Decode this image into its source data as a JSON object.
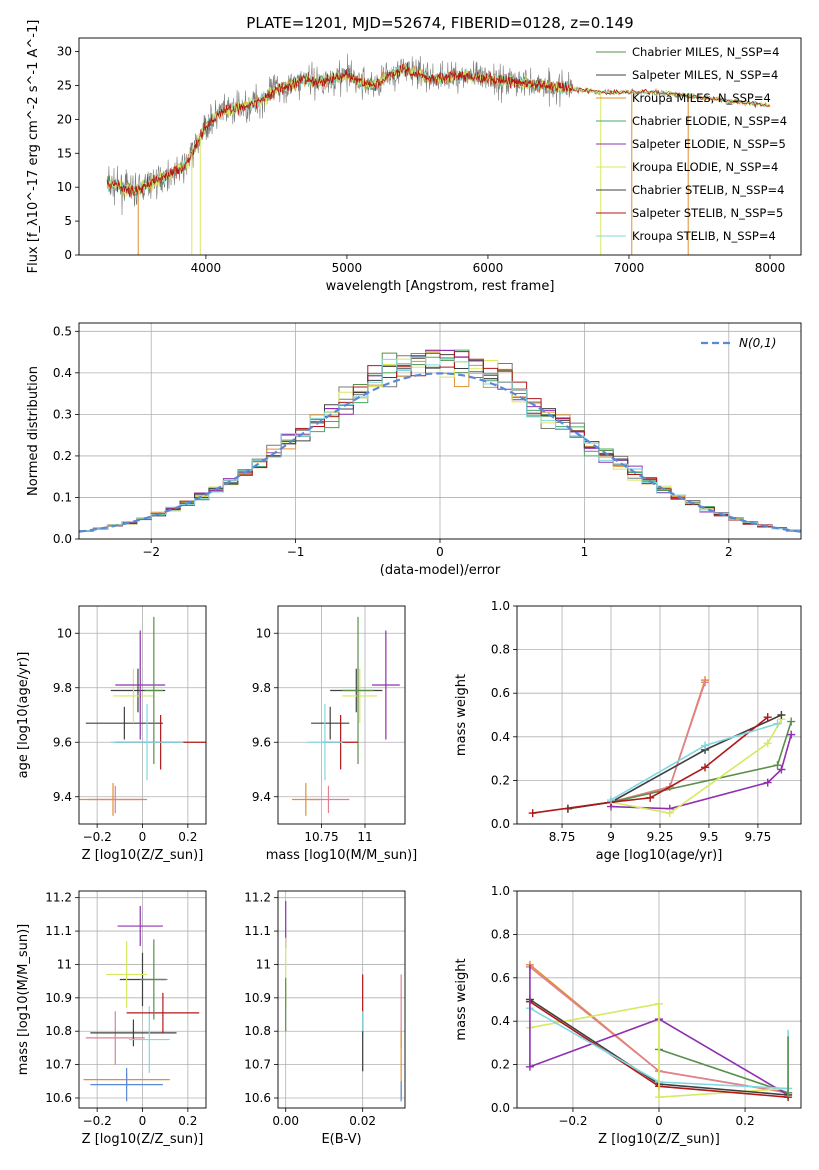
{
  "figure_title": "PLATE=1201, MJD=52674, FIBERID=0128, z=0.149",
  "colors": [
    "#5a8f4a",
    "#7a7a7a",
    "#e09030",
    "#4aa868",
    "#9030b0",
    "#d8e860",
    "#404040",
    "#b01818",
    "#80d8e0"
  ],
  "chart_data": [
    {
      "id": "spectrum",
      "type": "line",
      "xlabel": "wavelength [Angstrom, rest frame]",
      "ylabel": "Flux [f_λ10^-17 erg cm^-2 s^-1 A^-1]",
      "xlim": [
        3100,
        8220
      ],
      "ylim": [
        0,
        32
      ],
      "xticks": [
        4000,
        5000,
        6000,
        7000,
        8000
      ],
      "yticks": [
        0,
        5,
        10,
        15,
        20,
        25,
        30
      ],
      "grid": false,
      "legend_position": "top-right",
      "legend": [
        {
          "label": "Chabrier MILES, N_SSP=4",
          "color": "#5a8f4a"
        },
        {
          "label": "Salpeter MILES, N_SSP=4",
          "color": "#404040"
        },
        {
          "label": "Kroupa MILES, N_SSP=4",
          "color": "#e09030"
        },
        {
          "label": "Chabrier ELODIE, N_SSP=4",
          "color": "#4aa868"
        },
        {
          "label": "Salpeter ELODIE, N_SSP=5",
          "color": "#9030b0"
        },
        {
          "label": "Kroupa ELODIE, N_SSP=4",
          "color": "#d8e860"
        },
        {
          "label": "Chabrier STELIB, N_SSP=4",
          "color": "#404040"
        },
        {
          "label": "Salpeter STELIB, N_SSP=5",
          "color": "#b01818"
        },
        {
          "label": "Kroupa STELIB, N_SSP=4",
          "color": "#80d8e0"
        }
      ],
      "continuum": {
        "x": [
          3300,
          3500,
          3700,
          3850,
          3950,
          4000,
          4100,
          4200,
          4300,
          4400,
          4500,
          4600,
          4700,
          4800,
          4900,
          5000,
          5100,
          5200,
          5300,
          5400,
          5600,
          5800,
          6000,
          6200,
          6400,
          6600,
          6800,
          7000,
          7200,
          7400,
          7600,
          7800,
          8000
        ],
        "y": [
          10.5,
          9.5,
          11.5,
          13,
          17,
          19,
          21,
          21.5,
          22,
          23,
          24.5,
          25,
          26,
          25.5,
          26,
          26.5,
          25.5,
          25,
          26.5,
          27.5,
          26,
          26.5,
          26,
          25.5,
          25,
          24.5,
          24,
          24,
          24,
          23.5,
          23,
          22.5,
          22
        ]
      },
      "noise_range": [
        3300,
        6600
      ],
      "drops": [
        {
          "x": 3520,
          "color": "#e09030"
        },
        {
          "x": 3900,
          "color": "#d8e860"
        },
        {
          "x": 3960,
          "color": "#d8e860"
        },
        {
          "x": 6800,
          "color": "#d8e860"
        },
        {
          "x": 7020,
          "color": "#e09030"
        },
        {
          "x": 7420,
          "color": "#e09030"
        }
      ]
    },
    {
      "id": "residuals",
      "type": "histogram",
      "xlabel": "(data-model)/error",
      "ylabel": "Normed distribution",
      "xlim": [
        -2.5,
        2.5
      ],
      "ylim": [
        0,
        0.52
      ],
      "xticks": [
        -2,
        -1,
        0,
        1,
        2
      ],
      "yticks": [
        0.0,
        0.1,
        0.2,
        0.3,
        0.4,
        0.5
      ],
      "grid": true,
      "bin_width": 0.1,
      "legend_position": "top-right",
      "reference": {
        "label": "N(0,1)",
        "color": "#5a88d8",
        "style": "dashed"
      }
    },
    {
      "id": "age-vs-Z",
      "type": "errorbar",
      "xlabel": "Z [log10(Z/Z_sun)]",
      "ylabel": "age [log10(age/yr)]",
      "xlim": [
        -0.28,
        0.28
      ],
      "ylim": [
        9.3,
        10.1
      ],
      "xticks": [
        -0.2,
        0.0,
        0.2
      ],
      "yticks": [
        9.4,
        9.6,
        9.8,
        10.0
      ],
      "grid": true,
      "points": [
        {
          "x": -0.13,
          "y": 9.39,
          "xerr": 0.15,
          "yerr": 0.06,
          "color": "#e09030"
        },
        {
          "x": -0.12,
          "y": 9.39,
          "xerr": 0.12,
          "yerr": 0.05,
          "color": "#e08090"
        },
        {
          "x": -0.08,
          "y": 9.67,
          "xerr": 0.17,
          "yerr": 0.06,
          "color": "#404040"
        },
        {
          "x": -0.02,
          "y": 9.79,
          "xerr": 0.12,
          "yerr": 0.08,
          "color": "#404040"
        },
        {
          "x": -0.04,
          "y": 9.77,
          "xerr": 0.09,
          "yerr": 0.1,
          "color": "#d8e860"
        },
        {
          "x": -0.01,
          "y": 9.81,
          "xerr": 0.11,
          "yerr": 0.2,
          "color": "#9030b0"
        },
        {
          "x": 0.05,
          "y": 9.79,
          "xerr": 0.04,
          "yerr": 0.27,
          "color": "#5a8f4a"
        },
        {
          "x": 0.08,
          "y": 9.6,
          "xerr": 0.2,
          "yerr": 0.1,
          "color": "#b01818"
        },
        {
          "x": 0.02,
          "y": 9.6,
          "xerr": 0.16,
          "yerr": 0.14,
          "color": "#80d8e0"
        }
      ]
    },
    {
      "id": "age-vs-mass",
      "type": "errorbar",
      "xlabel": "mass [log10(M/M_sun)]",
      "ylabel": "",
      "xlim": [
        10.5,
        11.23
      ],
      "ylim": [
        9.3,
        10.1
      ],
      "xticks": [
        10.75,
        11.0
      ],
      "yticks": [
        9.4,
        9.6,
        9.8,
        10.0
      ],
      "grid": true,
      "points": [
        {
          "x": 10.66,
          "y": 9.39,
          "xerr": 0.08,
          "yerr": 0.06,
          "color": "#e09030"
        },
        {
          "x": 10.79,
          "y": 9.39,
          "xerr": 0.12,
          "yerr": 0.05,
          "color": "#e08090"
        },
        {
          "x": 10.8,
          "y": 9.67,
          "xerr": 0.11,
          "yerr": 0.06,
          "color": "#404040"
        },
        {
          "x": 10.95,
          "y": 9.79,
          "xerr": 0.15,
          "yerr": 0.08,
          "color": "#404040"
        },
        {
          "x": 10.97,
          "y": 9.77,
          "xerr": 0.1,
          "yerr": 0.1,
          "color": "#d8e860"
        },
        {
          "x": 11.12,
          "y": 9.81,
          "xerr": 0.08,
          "yerr": 0.2,
          "color": "#9030b0"
        },
        {
          "x": 10.96,
          "y": 9.79,
          "xerr": 0.09,
          "yerr": 0.27,
          "color": "#5a8f4a"
        },
        {
          "x": 10.86,
          "y": 9.6,
          "xerr": 0.1,
          "yerr": 0.1,
          "color": "#b01818"
        },
        {
          "x": 10.77,
          "y": 9.6,
          "xerr": 0.1,
          "yerr": 0.14,
          "color": "#80d8e0"
        }
      ]
    },
    {
      "id": "massweight-vs-age",
      "type": "line",
      "xlabel": "age [log10(age/yr)]",
      "ylabel": "mass weight",
      "xlim": [
        8.52,
        9.97
      ],
      "ylim": [
        0,
        1
      ],
      "xticks": [
        8.75,
        9.0,
        9.25,
        9.5,
        9.75
      ],
      "yticks": [
        0.0,
        0.2,
        0.4,
        0.6,
        0.8,
        1.0
      ],
      "grid": true,
      "series": [
        {
          "color": "#e09030",
          "x": [
            9.0,
            9.3,
            9.48
          ],
          "y": [
            0.1,
            0.17,
            0.66
          ]
        },
        {
          "color": "#e08090",
          "x": [
            9.0,
            9.3,
            9.48
          ],
          "y": [
            0.1,
            0.17,
            0.65
          ]
        },
        {
          "color": "#5a8f4a",
          "x": [
            8.78,
            9.0,
            9.85,
            9.92
          ],
          "y": [
            0.07,
            0.1,
            0.27,
            0.47
          ]
        },
        {
          "color": "#9030b0",
          "x": [
            9.0,
            9.3,
            9.8,
            9.87,
            9.92
          ],
          "y": [
            0.08,
            0.07,
            0.19,
            0.25,
            0.41
          ]
        },
        {
          "color": "#d8e860",
          "x": [
            9.0,
            9.3,
            9.8,
            9.87
          ],
          "y": [
            0.1,
            0.05,
            0.37,
            0.48
          ]
        },
        {
          "color": "#404040",
          "x": [
            8.78,
            9.0,
            9.48,
            9.87
          ],
          "y": [
            0.07,
            0.1,
            0.34,
            0.5
          ]
        },
        {
          "color": "#b01818",
          "x": [
            8.6,
            9.0,
            9.2,
            9.48,
            9.8
          ],
          "y": [
            0.05,
            0.1,
            0.12,
            0.26,
            0.49
          ]
        },
        {
          "color": "#80d8e0",
          "x": [
            9.0,
            9.48,
            9.85
          ],
          "y": [
            0.11,
            0.36,
            0.46
          ]
        }
      ]
    },
    {
      "id": "mass-vs-Z",
      "type": "errorbar",
      "xlabel": "Z [log10(Z/Z_sun)]",
      "ylabel": "mass [log10(M/M_sun)]",
      "xlim": [
        -0.28,
        0.28
      ],
      "ylim": [
        10.57,
        11.22
      ],
      "xticks": [
        -0.2,
        0.0,
        0.2
      ],
      "yticks": [
        10.6,
        10.7,
        10.8,
        10.9,
        11.0,
        11.1,
        11.2
      ],
      "grid": true,
      "points": [
        {
          "x": -0.07,
          "y": 10.655,
          "xerr": 0.19,
          "yerr": 0.02,
          "color": "#e09030"
        },
        {
          "x": -0.07,
          "y": 10.64,
          "xerr": 0.16,
          "yerr": 0.05,
          "color": "#5a88d8"
        },
        {
          "x": -0.12,
          "y": 10.78,
          "xerr": 0.13,
          "yerr": 0.08,
          "color": "#e08090"
        },
        {
          "x": -0.04,
          "y": 10.795,
          "xerr": 0.19,
          "yerr": 0.04,
          "color": "#404040"
        },
        {
          "x": 0.03,
          "y": 10.775,
          "xerr": 0.09,
          "yerr": 0.1,
          "color": "#80d8e0"
        },
        {
          "x": 0.09,
          "y": 10.855,
          "xerr": 0.16,
          "yerr": 0.06,
          "color": "#b01818"
        },
        {
          "x": 0.0,
          "y": 10.955,
          "xerr": 0.1,
          "yerr": 0.08,
          "color": "#404040"
        },
        {
          "x": -0.07,
          "y": 10.97,
          "xerr": 0.09,
          "yerr": 0.1,
          "color": "#d8e860"
        },
        {
          "x": 0.05,
          "y": 10.955,
          "xerr": 0.06,
          "yerr": 0.12,
          "color": "#5a8f4a"
        },
        {
          "x": -0.01,
          "y": 11.115,
          "xerr": 0.1,
          "yerr": 0.06,
          "color": "#9030b0"
        }
      ]
    },
    {
      "id": "mass-vs-ebv",
      "type": "errorbar",
      "xlabel": "E(B-V)",
      "ylabel": "",
      "xlim": [
        -0.002,
        0.031
      ],
      "ylim": [
        10.57,
        11.22
      ],
      "xticks": [
        0.0,
        0.02
      ],
      "yticks": [
        10.6,
        10.7,
        10.8,
        10.9,
        11.0,
        11.1,
        11.2
      ],
      "grid": true,
      "points": [
        {
          "x": 0.0,
          "y": 11.12,
          "yerr": 0.07,
          "color": "#9030b0"
        },
        {
          "x": 0.0,
          "y": 10.98,
          "yerr": 0.1,
          "color": "#d8e860"
        },
        {
          "x": 0.0,
          "y": 10.88,
          "yerr": 0.08,
          "color": "#5a8f4a"
        },
        {
          "x": 0.02,
          "y": 10.88,
          "yerr": 0.09,
          "color": "#b01818"
        },
        {
          "x": 0.02,
          "y": 10.77,
          "yerr": 0.09,
          "color": "#80d8e0"
        },
        {
          "x": 0.02,
          "y": 10.74,
          "yerr": 0.06,
          "color": "#404040"
        },
        {
          "x": 0.03,
          "y": 10.86,
          "yerr": 0.11,
          "color": "#e08090"
        },
        {
          "x": 0.03,
          "y": 10.7,
          "yerr": 0.1,
          "color": "#e09030"
        },
        {
          "x": 0.03,
          "y": 10.62,
          "yerr": 0.03,
          "color": "#5a88d8"
        }
      ]
    },
    {
      "id": "massweight-vs-Z",
      "type": "line",
      "xlabel": "Z [log10(Z/Z_sun)]",
      "ylabel": "mass weight",
      "xlim": [
        -0.33,
        0.33
      ],
      "ylim": [
        0,
        1
      ],
      "xticks": [
        -0.2,
        0.0,
        0.2
      ],
      "yticks": [
        0.0,
        0.2,
        0.4,
        0.6,
        0.8,
        1.0
      ],
      "grid": true,
      "series": [
        {
          "color": "#e09030",
          "x": [
            -0.3,
            0.0,
            0.3
          ],
          "y": [
            0.66,
            0.17,
            0.07
          ]
        },
        {
          "color": "#e08090",
          "x": [
            -0.3,
            0.0,
            0.3
          ],
          "y": [
            0.65,
            0.17,
            0.07
          ]
        },
        {
          "color": "#5a8f4a",
          "x": [
            0.0,
            0.3
          ],
          "y": [
            0.27,
            0.07
          ]
        },
        {
          "color": "#9030b0",
          "x": [
            -0.3,
            0.0,
            0.3
          ],
          "y": [
            0.19,
            0.41,
            0.06
          ]
        },
        {
          "color": "#d8e860",
          "x": [
            -0.3,
            0.0,
            0.0,
            0.3
          ],
          "y": [
            0.37,
            0.48,
            0.05,
            0.09
          ]
        },
        {
          "color": "#404040",
          "x": [
            -0.3,
            0.0,
            0.3
          ],
          "y": [
            0.5,
            0.11,
            0.06
          ]
        },
        {
          "color": "#b01818",
          "x": [
            -0.3,
            0.0,
            0.3
          ],
          "y": [
            0.49,
            0.1,
            0.05
          ]
        },
        {
          "color": "#80d8e0",
          "x": [
            -0.3,
            0.0,
            0.3
          ],
          "y": [
            0.46,
            0.12,
            0.09
          ]
        }
      ],
      "spikes": [
        {
          "x": -0.3,
          "y0": 0.19,
          "y1": 0.66,
          "color": "#9030b0"
        },
        {
          "x": 0.0,
          "y0": 0.05,
          "y1": 0.48,
          "color": "#d8e860"
        },
        {
          "x": 0.3,
          "y0": 0.05,
          "y1": 0.36,
          "color": "#80d8e0"
        },
        {
          "x": 0.3,
          "y0": 0.05,
          "y1": 0.33,
          "color": "#5a8f4a"
        }
      ]
    }
  ]
}
